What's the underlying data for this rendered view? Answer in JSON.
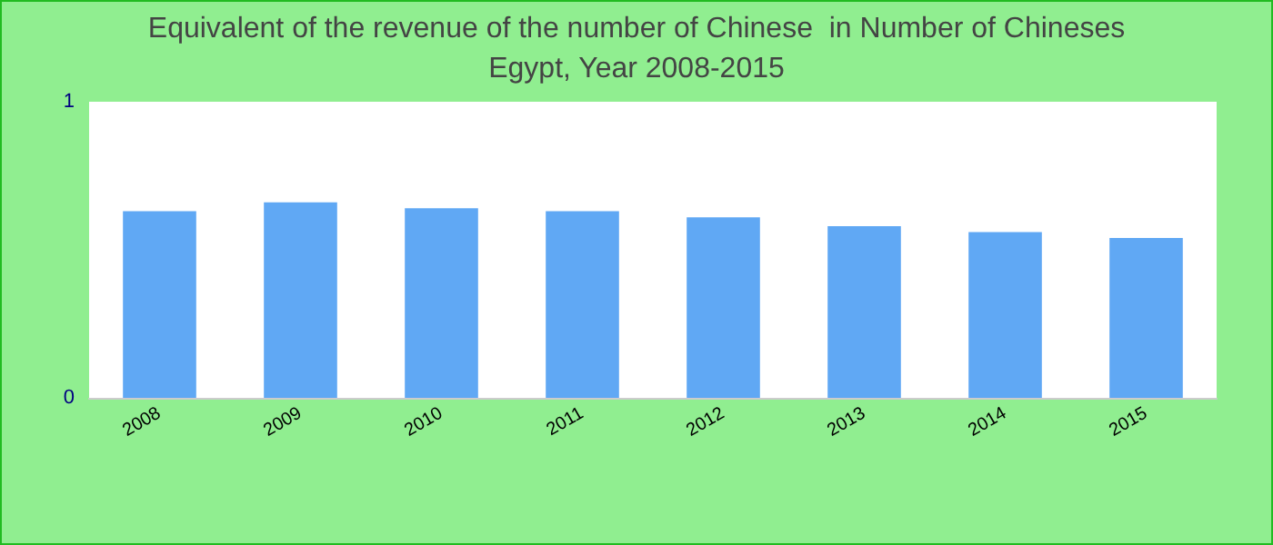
{
  "chart_data": {
    "type": "bar",
    "title": "Equivalent of the revenue of the number of Chinese  in Number of Chineses",
    "subtitle": "Egypt, Year 2008-2015",
    "categories": [
      "2008",
      "2009",
      "2010",
      "2011",
      "2012",
      "2013",
      "2014",
      "2015"
    ],
    "values": [
      0.63,
      0.66,
      0.64,
      0.63,
      0.61,
      0.58,
      0.56,
      0.54
    ],
    "color": "#60a8f4",
    "ylim": [
      0,
      1
    ],
    "yticks": [
      0,
      1
    ],
    "grid": false
  }
}
